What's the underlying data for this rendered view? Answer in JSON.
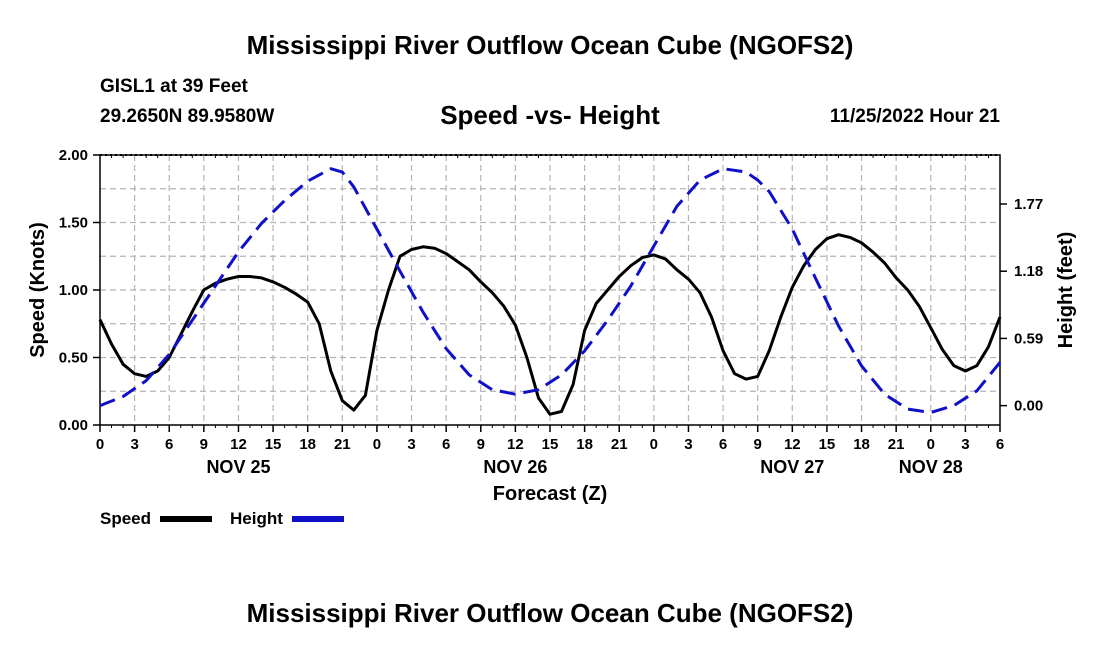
{
  "title": "Mississippi River Outflow Ocean Cube (NGOFS2)",
  "footer_title": "Mississippi River Outflow Ocean Cube (NGOFS2)",
  "station": "GISL1 at 39 Feet",
  "coords": "29.2650N  89.9580W",
  "subtitle": "Speed -vs- Height",
  "datetime": "11/25/2022 Hour 21",
  "legend": {
    "speed": "Speed",
    "height": "Height"
  },
  "colors": {
    "speed": "#000000",
    "height": "#1010c8",
    "grid": "#b4b4b4"
  },
  "chart_data": {
    "type": "line",
    "xlabel": "Forecast (Z)",
    "ylabel_left": "Speed (Knots)",
    "ylabel_right": "Height (feet)",
    "xlim": [
      0,
      78
    ],
    "ylim_left": [
      0,
      2.0
    ],
    "ylim_right": [
      -0.17,
      2.2
    ],
    "grid": true,
    "left_ticks": [
      {
        "value": 0,
        "label": "0.00"
      },
      {
        "value": 0.5,
        "label": "0.50"
      },
      {
        "value": 1.0,
        "label": "1.00"
      },
      {
        "value": 1.5,
        "label": "1.50"
      },
      {
        "value": 2.0,
        "label": "2.00"
      }
    ],
    "right_ticks": [
      {
        "value": 0,
        "label": "0.00"
      },
      {
        "value": 0.59,
        "label": "0.59"
      },
      {
        "value": 1.18,
        "label": "1.18"
      },
      {
        "value": 1.77,
        "label": "1.77"
      }
    ],
    "x_ticks": [
      {
        "value": 0,
        "label": "0"
      },
      {
        "value": 3,
        "label": "3"
      },
      {
        "value": 6,
        "label": "6"
      },
      {
        "value": 9,
        "label": "9"
      },
      {
        "value": 12,
        "label": "12"
      },
      {
        "value": 15,
        "label": "15"
      },
      {
        "value": 18,
        "label": "18"
      },
      {
        "value": 21,
        "label": "21"
      },
      {
        "value": 24,
        "label": "0"
      },
      {
        "value": 27,
        "label": "3"
      },
      {
        "value": 30,
        "label": "6"
      },
      {
        "value": 33,
        "label": "9"
      },
      {
        "value": 36,
        "label": "12"
      },
      {
        "value": 39,
        "label": "15"
      },
      {
        "value": 42,
        "label": "18"
      },
      {
        "value": 45,
        "label": "21"
      },
      {
        "value": 48,
        "label": "0"
      },
      {
        "value": 51,
        "label": "3"
      },
      {
        "value": 54,
        "label": "6"
      },
      {
        "value": 57,
        "label": "9"
      },
      {
        "value": 60,
        "label": "12"
      },
      {
        "value": 63,
        "label": "15"
      },
      {
        "value": 66,
        "label": "18"
      },
      {
        "value": 69,
        "label": "21"
      },
      {
        "value": 72,
        "label": "0"
      },
      {
        "value": 75,
        "label": "3"
      },
      {
        "value": 78,
        "label": "6"
      }
    ],
    "date_labels": [
      {
        "value": 12,
        "label": "NOV 25"
      },
      {
        "value": 36,
        "label": "NOV 26"
      },
      {
        "value": 60,
        "label": "NOV 27"
      },
      {
        "value": 72,
        "label": "NOV 28"
      }
    ],
    "series": [
      {
        "name": "Speed",
        "axis": "left",
        "x": [
          0,
          1,
          2,
          3,
          4,
          5,
          6,
          7,
          8,
          9,
          10,
          11,
          12,
          13,
          14,
          15,
          16,
          17,
          18,
          19,
          20,
          21,
          22,
          23,
          24,
          25,
          26,
          27,
          28,
          29,
          30,
          31,
          32,
          33,
          34,
          35,
          36,
          37,
          38,
          39,
          40,
          41,
          42,
          43,
          44,
          45,
          46,
          47,
          48,
          49,
          50,
          51,
          52,
          53,
          54,
          55,
          56,
          57,
          58,
          59,
          60,
          61,
          62,
          63,
          64,
          65,
          66,
          67,
          68,
          69,
          70,
          71,
          72,
          73,
          74,
          75,
          76,
          77,
          78
        ],
        "values": [
          0.78,
          0.6,
          0.45,
          0.38,
          0.36,
          0.4,
          0.5,
          0.67,
          0.84,
          1.0,
          1.05,
          1.08,
          1.1,
          1.1,
          1.09,
          1.06,
          1.02,
          0.97,
          0.91,
          0.75,
          0.4,
          0.18,
          0.11,
          0.22,
          0.7,
          1.0,
          1.25,
          1.3,
          1.32,
          1.31,
          1.27,
          1.21,
          1.15,
          1.06,
          0.98,
          0.88,
          0.74,
          0.5,
          0.2,
          0.08,
          0.1,
          0.3,
          0.7,
          0.9,
          1.0,
          1.1,
          1.18,
          1.24,
          1.26,
          1.23,
          1.15,
          1.08,
          0.98,
          0.8,
          0.55,
          0.38,
          0.34,
          0.36,
          0.55,
          0.8,
          1.02,
          1.18,
          1.3,
          1.38,
          1.41,
          1.39,
          1.35,
          1.28,
          1.2,
          1.09,
          1.0,
          0.88,
          0.72,
          0.56,
          0.44,
          0.4,
          0.44,
          0.58,
          0.8
        ]
      },
      {
        "name": "Height",
        "axis": "right",
        "x": [
          0,
          2,
          4,
          6,
          8,
          10,
          12,
          14,
          16,
          18,
          20,
          21,
          22,
          24,
          26,
          28,
          30,
          32,
          34,
          36,
          38,
          40,
          42,
          44,
          46,
          48,
          50,
          52,
          54,
          56,
          57,
          58,
          60,
          62,
          64,
          66,
          68,
          70,
          72,
          74,
          76,
          78
        ],
        "values": [
          0.0,
          0.08,
          0.22,
          0.45,
          0.75,
          1.05,
          1.35,
          1.6,
          1.8,
          1.97,
          2.08,
          2.05,
          1.92,
          1.55,
          1.18,
          0.82,
          0.5,
          0.27,
          0.14,
          0.1,
          0.14,
          0.27,
          0.48,
          0.75,
          1.05,
          1.4,
          1.75,
          1.98,
          2.08,
          2.05,
          1.98,
          1.88,
          1.55,
          1.12,
          0.7,
          0.35,
          0.1,
          -0.03,
          -0.06,
          0.0,
          0.13,
          0.38
        ]
      }
    ]
  }
}
